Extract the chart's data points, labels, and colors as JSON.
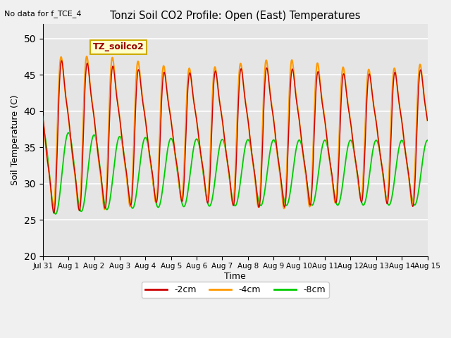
{
  "title": "Tonzi Soil CO2 Profile: Open (East) Temperatures",
  "subtitle": "No data for f_TCE_4",
  "ylabel": "Soil Temperature (C)",
  "xlabel": "Time",
  "legend_label": "TZ_soilco2",
  "ylim": [
    20,
    52
  ],
  "yticks": [
    20,
    25,
    30,
    35,
    40,
    45,
    50
  ],
  "bg_color": "#e5e5e5",
  "series": [
    {
      "label": "-2cm",
      "color": "#cc0000",
      "zorder": 3
    },
    {
      "label": "-4cm",
      "color": "#ff9900",
      "zorder": 2
    },
    {
      "label": "-8cm",
      "color": "#00cc00",
      "zorder": 1
    }
  ],
  "xtick_labels": [
    "Jul 31",
    "Aug 1",
    "Aug 2",
    "Aug 3",
    "Aug 4",
    "Aug 5",
    "Aug 6",
    "Aug 7",
    "Aug 8",
    "Aug 9",
    "Aug 10",
    "Aug 11",
    "Aug 12",
    "Aug 13",
    "Aug 14",
    "Aug 15"
  ],
  "grid_color": "#ffffff",
  "legend_box_color": "#ffffcc",
  "legend_box_edge": "#ccaa00"
}
